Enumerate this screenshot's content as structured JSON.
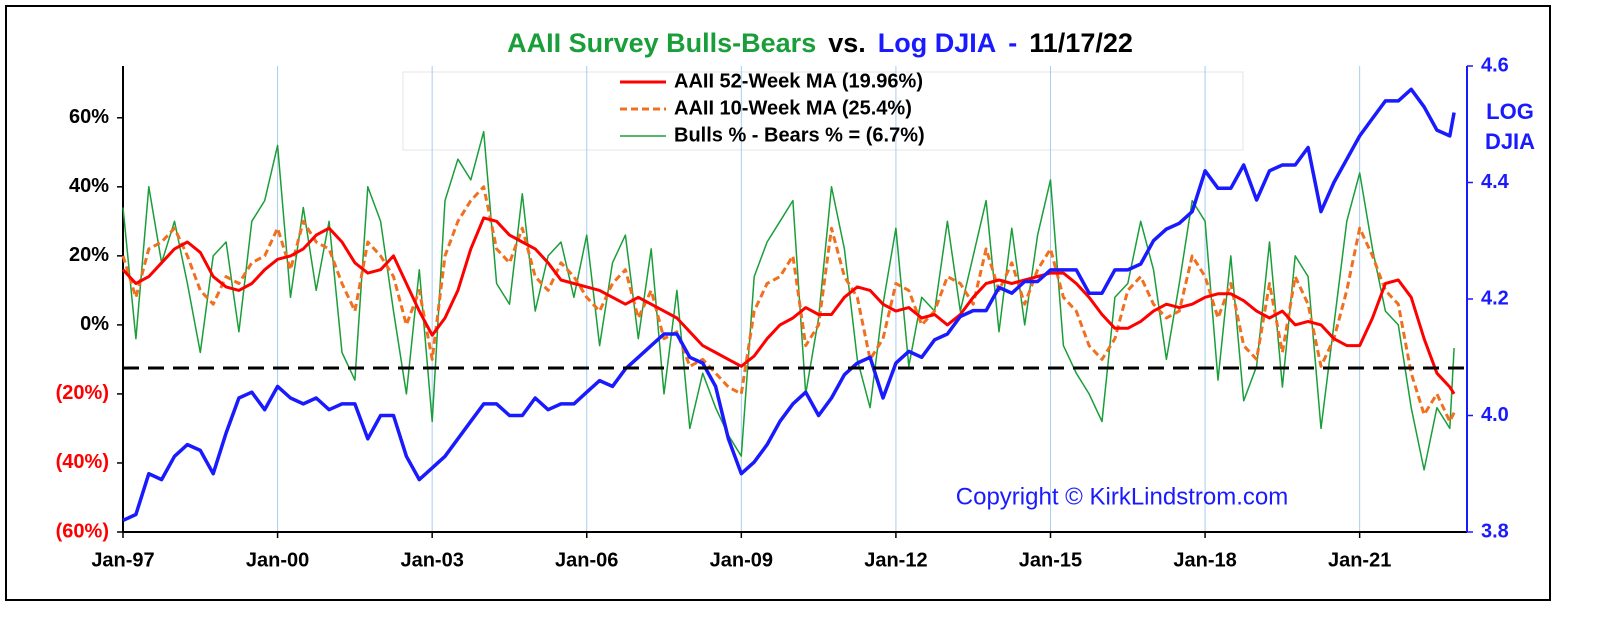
{
  "chart_data": {
    "type": "line",
    "title_parts": [
      {
        "text": "AAII Survey Bulls-Bears",
        "color": "#1a9e3a"
      },
      {
        "text": "vs.",
        "color": "#000000"
      },
      {
        "text": "Log DJIA",
        "color": "#1a1aff"
      },
      {
        "text": "-",
        "color": "#1a1aff"
      },
      {
        "text": "11/17/22",
        "color": "#000000"
      }
    ],
    "y2_label_lines": [
      "LOG",
      "DJIA"
    ],
    "annotation": "Copyright © KirkLindstrom.com",
    "annotation_color": "#1a1aff",
    "x": [
      "1997-01",
      "1997-04",
      "1997-07",
      "1997-10",
      "1998-01",
      "1998-04",
      "1998-07",
      "1998-10",
      "1999-01",
      "1999-04",
      "1999-07",
      "1999-10",
      "2000-01",
      "2000-04",
      "2000-07",
      "2000-10",
      "2001-01",
      "2001-04",
      "2001-07",
      "2001-10",
      "2002-01",
      "2002-04",
      "2002-07",
      "2002-10",
      "2003-01",
      "2003-04",
      "2003-07",
      "2003-10",
      "2004-01",
      "2004-04",
      "2004-07",
      "2004-10",
      "2005-01",
      "2005-04",
      "2005-07",
      "2005-10",
      "2006-01",
      "2006-04",
      "2006-07",
      "2006-10",
      "2007-01",
      "2007-04",
      "2007-07",
      "2007-10",
      "2008-01",
      "2008-04",
      "2008-07",
      "2008-10",
      "2009-01",
      "2009-04",
      "2009-07",
      "2009-10",
      "2010-01",
      "2010-04",
      "2010-07",
      "2010-10",
      "2011-01",
      "2011-04",
      "2011-07",
      "2011-10",
      "2012-01",
      "2012-04",
      "2012-07",
      "2012-10",
      "2013-01",
      "2013-04",
      "2013-07",
      "2013-10",
      "2014-01",
      "2014-04",
      "2014-07",
      "2014-10",
      "2015-01",
      "2015-04",
      "2015-07",
      "2015-10",
      "2016-01",
      "2016-04",
      "2016-07",
      "2016-10",
      "2017-01",
      "2017-04",
      "2017-07",
      "2017-10",
      "2018-01",
      "2018-04",
      "2018-07",
      "2018-10",
      "2019-01",
      "2019-04",
      "2019-07",
      "2019-10",
      "2020-01",
      "2020-04",
      "2020-07",
      "2020-10",
      "2021-01",
      "2021-04",
      "2021-07",
      "2021-10",
      "2022-01",
      "2022-04",
      "2022-07",
      "2022-10",
      "2022-11"
    ],
    "series": [
      {
        "name": "AAII 52-Week MA (19.96%)",
        "color": "#ff0000",
        "dash": false,
        "width": 3,
        "values": [
          16,
          12,
          14,
          18,
          22,
          24,
          21,
          14,
          11,
          10,
          12,
          16,
          19,
          20,
          22,
          26,
          28,
          24,
          18,
          15,
          16,
          20,
          12,
          4,
          -3,
          2,
          10,
          22,
          31,
          30,
          26,
          24,
          22,
          18,
          13,
          12,
          11,
          10,
          8,
          6,
          8,
          6,
          4,
          2,
          -2,
          -6,
          -8,
          -10,
          -12,
          -9,
          -4,
          0,
          2,
          5,
          3,
          3,
          8,
          11,
          10,
          6,
          4,
          5,
          2,
          3,
          0,
          3,
          8,
          12,
          13,
          12,
          13,
          14,
          15,
          15,
          12,
          8,
          3,
          -1,
          -1,
          1,
          4,
          6,
          5,
          6,
          8,
          9,
          9,
          7,
          4,
          2,
          4,
          0,
          1,
          0,
          -4,
          -6,
          -6,
          2,
          12,
          13,
          8,
          -4,
          -14,
          -18,
          -19.96
        ]
      },
      {
        "name": "AAII 10-Week MA (25.4%)",
        "color": "#f07020",
        "dash": true,
        "width": 3,
        "values": [
          20,
          8,
          22,
          24,
          28,
          20,
          10,
          6,
          14,
          12,
          18,
          20,
          28,
          16,
          30,
          24,
          22,
          12,
          4,
          24,
          20,
          14,
          0,
          10,
          -10,
          20,
          30,
          36,
          40,
          22,
          18,
          28,
          14,
          10,
          18,
          14,
          8,
          4,
          12,
          16,
          2,
          10,
          -4,
          -2,
          -12,
          -10,
          -14,
          -18,
          -20,
          4,
          12,
          14,
          20,
          -6,
          0,
          28,
          14,
          8,
          -10,
          -4,
          12,
          10,
          0,
          4,
          14,
          12,
          6,
          22,
          10,
          18,
          6,
          16,
          22,
          8,
          4,
          -6,
          -10,
          -4,
          10,
          14,
          6,
          2,
          4,
          20,
          14,
          2,
          12,
          -6,
          -10,
          12,
          -8,
          14,
          6,
          -12,
          -4,
          10,
          28,
          20,
          10,
          6,
          -14,
          -26,
          -20,
          -28,
          -25.4
        ]
      },
      {
        "name": "Bulls % - Bears % = (6.7%)",
        "color": "#1a9e3a",
        "dash": false,
        "width": 1.5,
        "values": [
          34,
          -4,
          40,
          18,
          30,
          12,
          -8,
          20,
          24,
          -2,
          30,
          36,
          52,
          8,
          34,
          10,
          30,
          -8,
          -16,
          40,
          30,
          4,
          -20,
          16,
          -28,
          36,
          48,
          42,
          56,
          12,
          6,
          38,
          4,
          20,
          24,
          8,
          26,
          -6,
          18,
          26,
          -4,
          22,
          -20,
          10,
          -30,
          -14,
          -24,
          -32,
          -38,
          14,
          24,
          30,
          36,
          -20,
          2,
          40,
          22,
          -10,
          -24,
          6,
          28,
          -12,
          8,
          4,
          30,
          4,
          20,
          36,
          -2,
          28,
          0,
          26,
          42,
          -6,
          -14,
          -20,
          -28,
          8,
          12,
          30,
          16,
          -10,
          12,
          36,
          30,
          -16,
          20,
          -22,
          -12,
          24,
          -18,
          20,
          14,
          -30,
          0,
          30,
          44,
          22,
          4,
          0,
          -24,
          -42,
          -24,
          -30,
          -6.7
        ]
      },
      {
        "color": "#1a1aff",
        "dash": false,
        "width": 3.5,
        "axis": "y2",
        "values": [
          3.82,
          3.83,
          3.9,
          3.89,
          3.93,
          3.95,
          3.94,
          3.9,
          3.97,
          4.03,
          4.04,
          4.01,
          4.05,
          4.03,
          4.02,
          4.03,
          4.01,
          4.02,
          4.02,
          3.96,
          4,
          4,
          3.93,
          3.89,
          3.91,
          3.93,
          3.96,
          3.99,
          4.02,
          4.02,
          4,
          4,
          4.03,
          4.01,
          4.02,
          4.02,
          4.04,
          4.06,
          4.05,
          4.08,
          4.1,
          4.12,
          4.14,
          4.14,
          4.1,
          4.09,
          4.05,
          3.96,
          3.9,
          3.92,
          3.95,
          3.99,
          4.02,
          4.04,
          4,
          4.03,
          4.07,
          4.09,
          4.1,
          4.03,
          4.09,
          4.11,
          4.1,
          4.13,
          4.14,
          4.17,
          4.18,
          4.18,
          4.22,
          4.21,
          4.23,
          4.23,
          4.25,
          4.25,
          4.25,
          4.21,
          4.21,
          4.25,
          4.25,
          4.26,
          4.3,
          4.32,
          4.33,
          4.35,
          4.42,
          4.39,
          4.39,
          4.43,
          4.37,
          4.42,
          4.43,
          4.43,
          4.46,
          4.35,
          4.4,
          4.44,
          4.48,
          4.51,
          4.54,
          4.54,
          4.56,
          4.53,
          4.49,
          4.48,
          4.52
        ]
      }
    ],
    "xlim": [
      "1997-01",
      "2023-02"
    ],
    "xticks": [
      {
        "value": "1997-01",
        "label": "Jan-97"
      },
      {
        "value": "2000-01",
        "label": "Jan-00"
      },
      {
        "value": "2003-01",
        "label": "Jan-03"
      },
      {
        "value": "2006-01",
        "label": "Jan-06"
      },
      {
        "value": "2009-01",
        "label": "Jan-09"
      },
      {
        "value": "2012-01",
        "label": "Jan-12"
      },
      {
        "value": "2015-01",
        "label": "Jan-15"
      },
      {
        "value": "2018-01",
        "label": "Jan-18"
      },
      {
        "value": "2021-01",
        "label": "Jan-21"
      }
    ],
    "ylim": [
      -60,
      75
    ],
    "yticks": [
      {
        "value": 60,
        "label": "60%"
      },
      {
        "value": 40,
        "label": "40%"
      },
      {
        "value": 20,
        "label": "20%"
      },
      {
        "value": 0,
        "label": "0%"
      },
      {
        "value": -20,
        "label": "(20%)"
      },
      {
        "value": -40,
        "label": "(40%)"
      },
      {
        "value": -60,
        "label": "(60%)"
      }
    ],
    "negative_tick_color": "#ff0000",
    "y2lim": [
      3.8,
      4.6
    ],
    "y2ticks": [
      3.8,
      {
        "value": 4,
        "label": "4.0"
      },
      4.2,
      4.4,
      4.6
    ],
    "y2_color": "#1a1aff",
    "reference_line": -12.5,
    "x_grid": true,
    "x_grid_color": "#a8cdf0"
  }
}
